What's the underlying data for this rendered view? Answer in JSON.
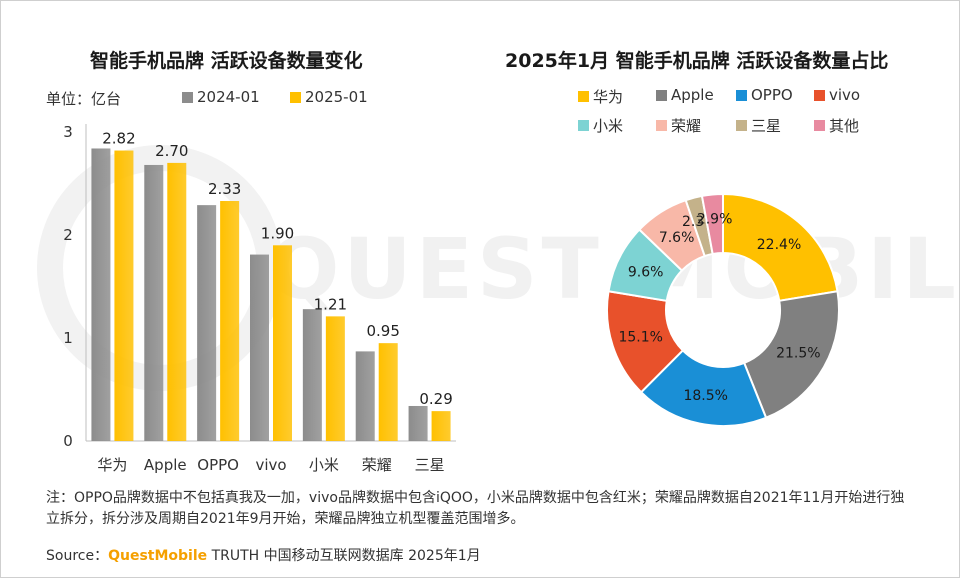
{
  "bar_chart": {
    "title": "智能手机品牌 活跃设备数量变化",
    "unit_label": "单位：亿台"
  },
  "pie_chart": {
    "title": "2025年1月 智能手机品牌 活跃设备数量占比"
  },
  "footnote": "注：OPPO品牌数据中不包括真我及一加，vivo品牌数据中包含iQOO，小米品牌数据中包含红米；荣耀品牌数据自2021年11月开始进行独立拆分，拆分涉及周期自2021年9月开始，荣耀品牌独立机型覆盖范围增多。",
  "source": {
    "prefix": "Source：",
    "brand": "QuestMobile",
    "rest": " TRUTH 中国移动互联网数据库 2025年1月"
  },
  "chart_data": [
    {
      "type": "bar",
      "title": "智能手机品牌 活跃设备数量变化",
      "ylabel": "单位：亿台",
      "categories": [
        "华为",
        "Apple",
        "OPPO",
        "vivo",
        "小米",
        "荣耀",
        "三星"
      ],
      "series": [
        {
          "name": "2024-01",
          "color": "#8c8c8c",
          "values": [
            2.84,
            2.68,
            2.29,
            1.81,
            1.28,
            0.87,
            0.34
          ]
        },
        {
          "name": "2025-01",
          "color": "#ffc000",
          "values": [
            2.82,
            2.7,
            2.33,
            1.9,
            1.21,
            0.95,
            0.29
          ]
        }
      ],
      "data_labels": [
        "2.82",
        "2.70",
        "2.33",
        "1.90",
        "1.21",
        "0.95",
        "0.29"
      ],
      "yticks": [
        "0",
        "1",
        "2",
        "3"
      ],
      "ylim": [
        0,
        3
      ],
      "grid": false,
      "legend_position": "top"
    },
    {
      "type": "pie",
      "title": "2025年1月 智能手机品牌 活跃设备数量占比",
      "donut": true,
      "labels": [
        "华为",
        "Apple",
        "OPPO",
        "vivo",
        "小米",
        "荣耀",
        "三星",
        "其他"
      ],
      "values": [
        22.4,
        21.5,
        18.5,
        15.1,
        9.6,
        7.6,
        2.3,
        2.9
      ],
      "value_labels": [
        "22.4%",
        "21.5%",
        "18.5%",
        "15.1%",
        "9.6%",
        "7.6%",
        "2.3%",
        "2.9%"
      ],
      "colors": [
        "#ffc000",
        "#808080",
        "#1a8fd6",
        "#e8512b",
        "#7dd3d3",
        "#f8b8a8",
        "#c4b28a",
        "#e88aa0"
      ],
      "legend_position": "top"
    }
  ]
}
